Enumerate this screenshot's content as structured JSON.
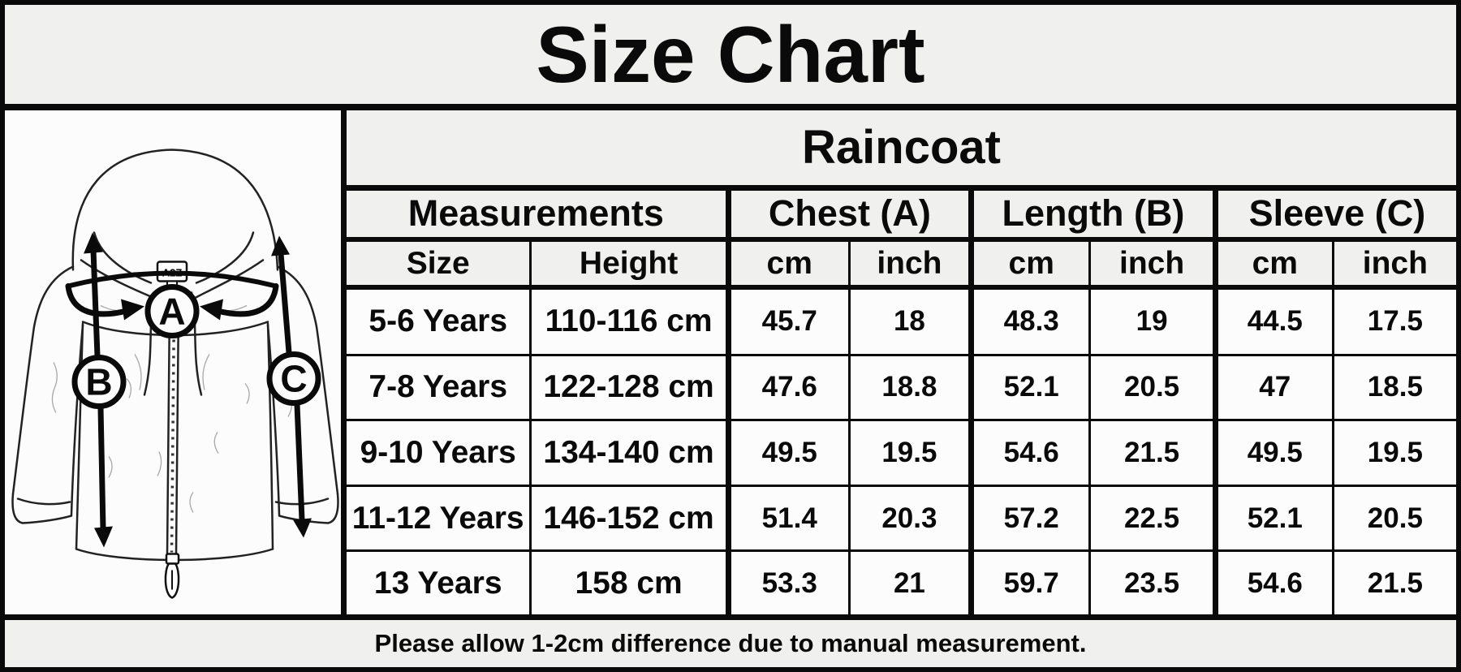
{
  "page_title": "Size Chart",
  "chart_data": {
    "type": "table",
    "title": "Raincoat",
    "group_headers": [
      "Measurements",
      "Chest (A)",
      "Length (B)",
      "Sleeve (C)"
    ],
    "columns": [
      "Size",
      "Height",
      "cm",
      "inch",
      "cm",
      "inch",
      "cm",
      "inch"
    ],
    "rows": [
      [
        "5-6 Years",
        "110-116 cm",
        "45.7",
        "18",
        "48.3",
        "19",
        "44.5",
        "17.5"
      ],
      [
        "7-8 Years",
        "122-128 cm",
        "47.6",
        "18.8",
        "52.1",
        "20.5",
        "47",
        "18.5"
      ],
      [
        "9-10 Years",
        "134-140 cm",
        "49.5",
        "19.5",
        "54.6",
        "21.5",
        "49.5",
        "19.5"
      ],
      [
        "11-12 Years",
        "146-152 cm",
        "51.4",
        "20.3",
        "57.2",
        "22.5",
        "52.1",
        "20.5"
      ],
      [
        "13 Years",
        "158 cm",
        "53.3",
        "21",
        "59.7",
        "23.5",
        "54.6",
        "21.5"
      ]
    ],
    "note": "Please allow 1-2cm difference due to manual measurement."
  },
  "diagram": {
    "brand_label": "A2Z",
    "measure_labels": {
      "chest": "A",
      "length": "B",
      "sleeve": "C"
    }
  },
  "colors": {
    "background": "#f0f0ee",
    "cell": "#fcfcfc",
    "ink": "#0a0a0a"
  }
}
